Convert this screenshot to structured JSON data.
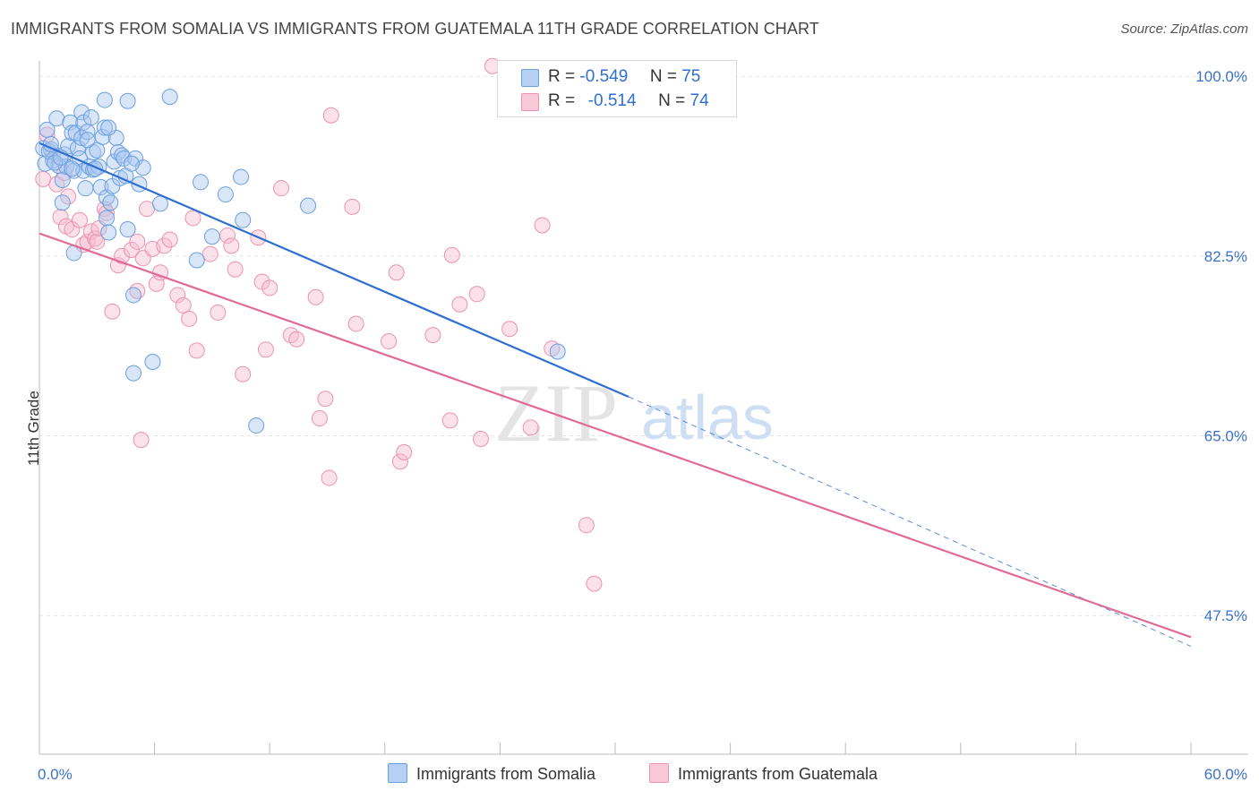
{
  "title": "IMMIGRANTS FROM SOMALIA VS IMMIGRANTS FROM GUATEMALA 11TH GRADE CORRELATION CHART",
  "source": "Source: ZipAtlas.com",
  "watermark": {
    "zip": "ZIP",
    "atlas": "atlas"
  },
  "legend": {
    "rows": [
      {
        "r_label": "R =",
        "r_value": "-0.549",
        "n_label": "N =",
        "n_value": "75"
      },
      {
        "r_label": "R =",
        "r_value": "-0.514",
        "n_label": "N =",
        "n_value": "74"
      }
    ]
  },
  "bottom_legend": {
    "somalia": "Immigrants from Somalia",
    "guatemala": "Immigrants from Guatemala"
  },
  "colors": {
    "somalia_fill": "#a9c8f0",
    "somalia_stroke": "#6a9ee0",
    "somalia_line": "#2f6fd1",
    "guatemala_fill": "#f7bdd0",
    "guatemala_stroke": "#ec92b2",
    "guatemala_line": "#e06a96"
  },
  "chart_data": {
    "type": "scatter",
    "title": "IMMIGRANTS FROM SOMALIA VS IMMIGRANTS FROM GUATEMALA 11TH GRADE CORRELATION CHART",
    "xlabel": "",
    "ylabel": "11th Grade",
    "xlim": [
      0,
      60
    ],
    "ylim": [
      34,
      101.5
    ],
    "y_ticks": [
      47.5,
      65.0,
      82.5,
      100.0
    ],
    "y_tick_labels": [
      "47.5%",
      "65.0%",
      "82.5%",
      "100.0%"
    ],
    "x_tick_labels": [
      "0.0%",
      "60.0%"
    ],
    "series": [
      {
        "name": "Immigrants from Somalia",
        "r": -0.549,
        "n": 75,
        "trend": {
          "x0": 0,
          "y0": 93.5,
          "x1": 30.7,
          "y1": 68.8,
          "dash_to_x": 60,
          "dash_to_y": 44.5
        },
        "points": [
          [
            0.4,
            94.8
          ],
          [
            0.6,
            92.9
          ],
          [
            0.7,
            91.8
          ],
          [
            0.9,
            95.9
          ],
          [
            1.0,
            91.3
          ],
          [
            1.2,
            87.7
          ],
          [
            1.2,
            89.9
          ],
          [
            1.3,
            92.4
          ],
          [
            1.4,
            91.2
          ],
          [
            1.5,
            93.2
          ],
          [
            1.6,
            95.5
          ],
          [
            1.7,
            94.5
          ],
          [
            1.8,
            90.8
          ],
          [
            1.8,
            82.8
          ],
          [
            1.9,
            94.5
          ],
          [
            2.0,
            93.0
          ],
          [
            2.1,
            92.0
          ],
          [
            2.2,
            96.5
          ],
          [
            2.2,
            94.0
          ],
          [
            2.3,
            95.5
          ],
          [
            2.3,
            90.8
          ],
          [
            2.4,
            89.1
          ],
          [
            2.5,
            94.6
          ],
          [
            2.6,
            91.2
          ],
          [
            2.7,
            96.0
          ],
          [
            2.8,
            92.6
          ],
          [
            2.8,
            90.9
          ],
          [
            3.0,
            92.8
          ],
          [
            3.1,
            91.2
          ],
          [
            3.2,
            89.2
          ],
          [
            3.3,
            94.1
          ],
          [
            3.4,
            97.7
          ],
          [
            3.4,
            95.0
          ],
          [
            3.5,
            88.2
          ],
          [
            3.5,
            86.2
          ],
          [
            3.6,
            84.8
          ],
          [
            3.7,
            87.7
          ],
          [
            3.8,
            89.3
          ],
          [
            3.9,
            91.7
          ],
          [
            4.0,
            94.0
          ],
          [
            4.1,
            92.6
          ],
          [
            4.2,
            90.1
          ],
          [
            4.3,
            92.3
          ],
          [
            4.4,
            92.0
          ],
          [
            4.5,
            90.3
          ],
          [
            4.6,
            97.6
          ],
          [
            4.6,
            85.1
          ],
          [
            4.9,
            78.7
          ],
          [
            4.9,
            71.1
          ],
          [
            5.0,
            92.0
          ],
          [
            5.2,
            89.5
          ],
          [
            5.4,
            91.1
          ],
          [
            5.9,
            72.2
          ],
          [
            6.3,
            87.6
          ],
          [
            6.8,
            98.0
          ],
          [
            8.4,
            89.7
          ],
          [
            8.2,
            82.1
          ],
          [
            9.0,
            84.4
          ],
          [
            9.7,
            88.5
          ],
          [
            10.5,
            90.2
          ],
          [
            10.6,
            86.0
          ],
          [
            11.3,
            66.0
          ],
          [
            14.0,
            87.4
          ],
          [
            27.0,
            73.2
          ],
          [
            0.2,
            93.0
          ],
          [
            0.3,
            91.5
          ],
          [
            0.5,
            92.7
          ],
          [
            0.8,
            91.6
          ],
          [
            1.1,
            92.1
          ],
          [
            2.9,
            91.0
          ],
          [
            3.6,
            95.0
          ],
          [
            2.5,
            93.8
          ],
          [
            1.7,
            91.0
          ],
          [
            4.8,
            91.5
          ],
          [
            0.6,
            93.4
          ]
        ]
      },
      {
        "name": "Immigrants from Guatemala",
        "r": -0.514,
        "n": 74,
        "trend": {
          "x0": 0,
          "y0": 84.7,
          "x1": 60,
          "y1": 45.4
        },
        "points": [
          [
            0.2,
            90.0
          ],
          [
            0.4,
            94.3
          ],
          [
            0.7,
            92.3
          ],
          [
            0.9,
            89.5
          ],
          [
            1.1,
            86.3
          ],
          [
            1.3,
            90.6
          ],
          [
            1.4,
            85.4
          ],
          [
            1.5,
            88.3
          ],
          [
            1.7,
            85.1
          ],
          [
            2.1,
            86.0
          ],
          [
            2.3,
            83.6
          ],
          [
            2.5,
            83.9
          ],
          [
            2.7,
            84.9
          ],
          [
            2.9,
            84.2
          ],
          [
            3.0,
            83.9
          ],
          [
            3.1,
            85.2
          ],
          [
            3.4,
            87.1
          ],
          [
            3.5,
            86.7
          ],
          [
            3.8,
            77.1
          ],
          [
            4.1,
            81.6
          ],
          [
            4.3,
            82.5
          ],
          [
            4.8,
            83.1
          ],
          [
            5.1,
            83.9
          ],
          [
            5.1,
            79.1
          ],
          [
            5.3,
            64.6
          ],
          [
            5.4,
            82.3
          ],
          [
            5.6,
            87.1
          ],
          [
            5.9,
            83.2
          ],
          [
            6.1,
            79.8
          ],
          [
            6.3,
            80.9
          ],
          [
            6.5,
            83.5
          ],
          [
            6.8,
            84.1
          ],
          [
            7.2,
            78.7
          ],
          [
            7.5,
            77.7
          ],
          [
            7.8,
            76.4
          ],
          [
            8.0,
            86.2
          ],
          [
            8.2,
            73.3
          ],
          [
            8.9,
            82.7
          ],
          [
            9.3,
            77.0
          ],
          [
            9.8,
            84.5
          ],
          [
            10.0,
            83.5
          ],
          [
            10.2,
            81.2
          ],
          [
            10.6,
            71.0
          ],
          [
            11.4,
            84.3
          ],
          [
            11.6,
            80.0
          ],
          [
            11.8,
            73.4
          ],
          [
            12.0,
            79.4
          ],
          [
            12.6,
            89.1
          ],
          [
            13.1,
            74.8
          ],
          [
            13.4,
            74.4
          ],
          [
            14.4,
            78.5
          ],
          [
            14.6,
            66.7
          ],
          [
            14.9,
            68.6
          ],
          [
            15.1,
            60.9
          ],
          [
            15.2,
            96.2
          ],
          [
            16.3,
            87.3
          ],
          [
            16.5,
            75.9
          ],
          [
            18.2,
            74.2
          ],
          [
            18.6,
            80.9
          ],
          [
            18.8,
            62.5
          ],
          [
            19.0,
            63.4
          ],
          [
            20.5,
            74.8
          ],
          [
            21.4,
            66.5
          ],
          [
            21.5,
            82.6
          ],
          [
            21.9,
            77.8
          ],
          [
            22.8,
            78.8
          ],
          [
            23.0,
            64.7
          ],
          [
            23.6,
            101.0
          ],
          [
            24.5,
            75.4
          ],
          [
            25.6,
            65.8
          ],
          [
            26.2,
            85.5
          ],
          [
            26.7,
            73.5
          ],
          [
            28.5,
            56.3
          ],
          [
            28.9,
            50.6
          ]
        ]
      }
    ]
  }
}
